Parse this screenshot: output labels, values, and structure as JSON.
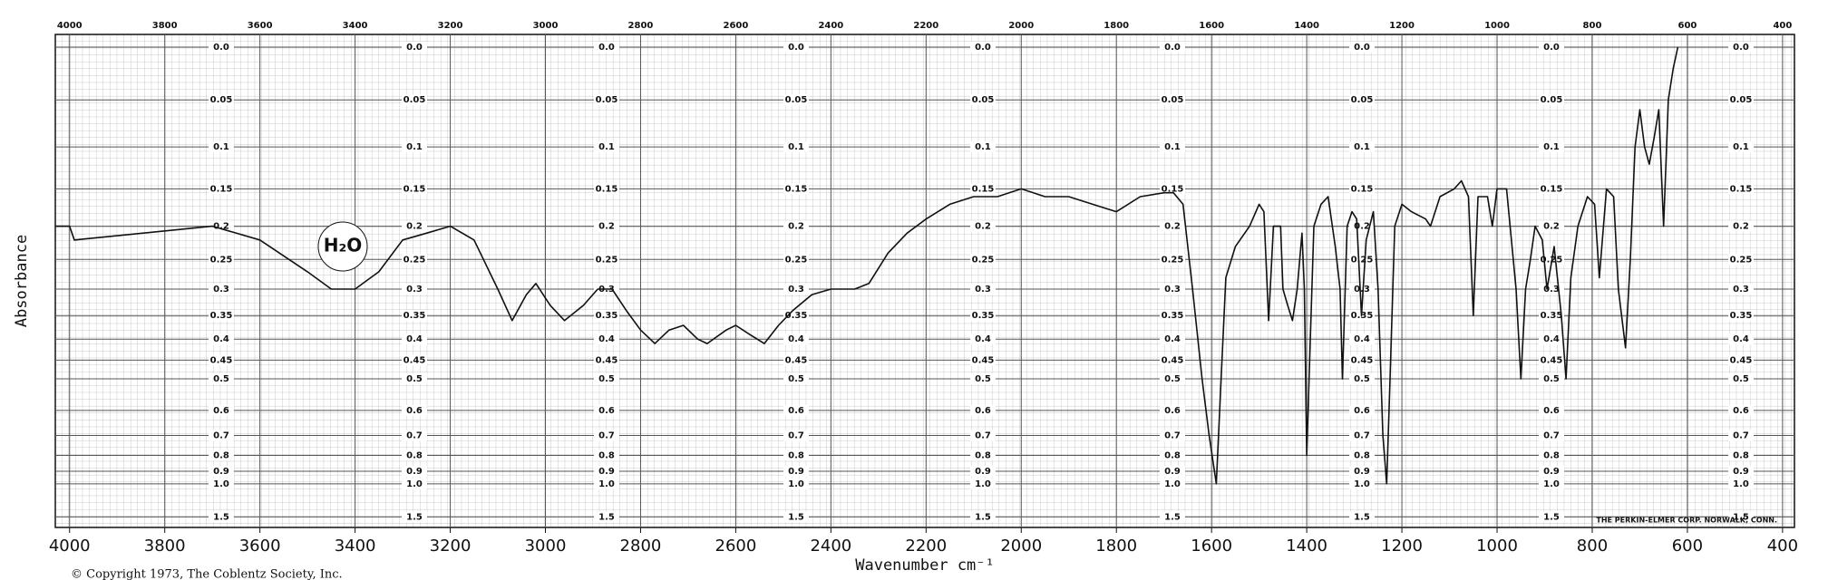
{
  "chart_data": {
    "type": "line",
    "xlabel": "Wavenumber cm⁻¹",
    "ylabel": "Absorbance",
    "annotations": [
      "H₂O",
      "THE PERKIN-ELMER CORP. NORWALK, CONN.",
      "© Copyright 1973, The Coblentz Society, Inc."
    ],
    "xlim": [
      4030,
      375
    ],
    "xticks": [
      4000,
      3800,
      3600,
      3400,
      3200,
      3000,
      2800,
      2600,
      2400,
      2200,
      2000,
      1800,
      1600,
      1400,
      1200,
      1000,
      800,
      600,
      400
    ],
    "ylim": [
      0,
      2
    ],
    "yscale": "transmittance",
    "yticks": [
      {
        "value": 0,
        "label": "0.0"
      },
      0.05,
      0.1,
      0.15,
      0.2,
      0.25,
      0.3,
      0.35,
      0.4,
      0.45,
      0.5,
      0.6,
      0.7,
      0.8,
      0.9,
      {
        "value": 1,
        "label": "1.0"
      },
      1.5
    ],
    "grid": true,
    "color": "#111111",
    "x": [
      4030,
      4000,
      3990,
      3700,
      3600,
      3500,
      3450,
      3400,
      3350,
      3300,
      3250,
      3200,
      3150,
      3100,
      3070,
      3040,
      3020,
      2990,
      2960,
      2920,
      2890,
      2860,
      2830,
      2800,
      2770,
      2740,
      2710,
      2680,
      2660,
      2620,
      2600,
      2570,
      2540,
      2510,
      2480,
      2440,
      2400,
      2350,
      2320,
      2280,
      2240,
      2200,
      2150,
      2100,
      2050,
      2000,
      1950,
      1900,
      1850,
      1800,
      1750,
      1700,
      1680,
      1660,
      1640,
      1620,
      1605,
      1590,
      1580,
      1570,
      1550,
      1520,
      1500,
      1490,
      1480,
      1470,
      1455,
      1450,
      1440,
      1430,
      1420,
      1410,
      1405,
      1400,
      1395,
      1385,
      1370,
      1355,
      1340,
      1330,
      1325,
      1315,
      1305,
      1295,
      1285,
      1275,
      1260,
      1250,
      1240,
      1232,
      1225,
      1215,
      1200,
      1180,
      1150,
      1140,
      1120,
      1090,
      1075,
      1060,
      1050,
      1040,
      1020,
      1010,
      1000,
      980,
      960,
      950,
      940,
      930,
      920,
      905,
      895,
      880,
      865,
      855,
      845,
      830,
      810,
      795,
      785,
      770,
      755,
      745,
      730,
      720,
      710,
      700,
      690,
      680,
      670,
      660,
      650,
      640,
      630,
      620
    ],
    "values": [
      0.2,
      0.2,
      0.22,
      0.2,
      0.22,
      0.27,
      0.3,
      0.3,
      0.27,
      0.22,
      0.21,
      0.2,
      0.22,
      0.3,
      0.36,
      0.31,
      0.29,
      0.33,
      0.36,
      0.33,
      0.3,
      0.3,
      0.34,
      0.38,
      0.41,
      0.38,
      0.37,
      0.4,
      0.41,
      0.38,
      0.37,
      0.39,
      0.41,
      0.37,
      0.34,
      0.31,
      0.3,
      0.3,
      0.29,
      0.24,
      0.21,
      0.19,
      0.17,
      0.16,
      0.16,
      0.15,
      0.16,
      0.16,
      0.17,
      0.18,
      0.16,
      0.155,
      0.155,
      0.17,
      0.3,
      0.5,
      0.7,
      1.0,
      0.5,
      0.28,
      0.23,
      0.2,
      0.17,
      0.18,
      0.36,
      0.2,
      0.2,
      0.3,
      0.33,
      0.36,
      0.3,
      0.21,
      0.3,
      0.8,
      0.5,
      0.2,
      0.17,
      0.16,
      0.23,
      0.3,
      0.5,
      0.2,
      0.18,
      0.19,
      0.35,
      0.22,
      0.18,
      0.3,
      0.7,
      1.0,
      0.5,
      0.2,
      0.17,
      0.18,
      0.19,
      0.2,
      0.16,
      0.15,
      0.14,
      0.16,
      0.35,
      0.16,
      0.16,
      0.2,
      0.15,
      0.15,
      0.3,
      0.5,
      0.3,
      0.25,
      0.2,
      0.22,
      0.3,
      0.23,
      0.35,
      0.5,
      0.28,
      0.2,
      0.16,
      0.17,
      0.28,
      0.15,
      0.16,
      0.3,
      0.42,
      0.25,
      0.1,
      0.06,
      0.1,
      0.12,
      0.09,
      0.06,
      0.2,
      0.05,
      0.02,
      0.0
    ]
  }
}
